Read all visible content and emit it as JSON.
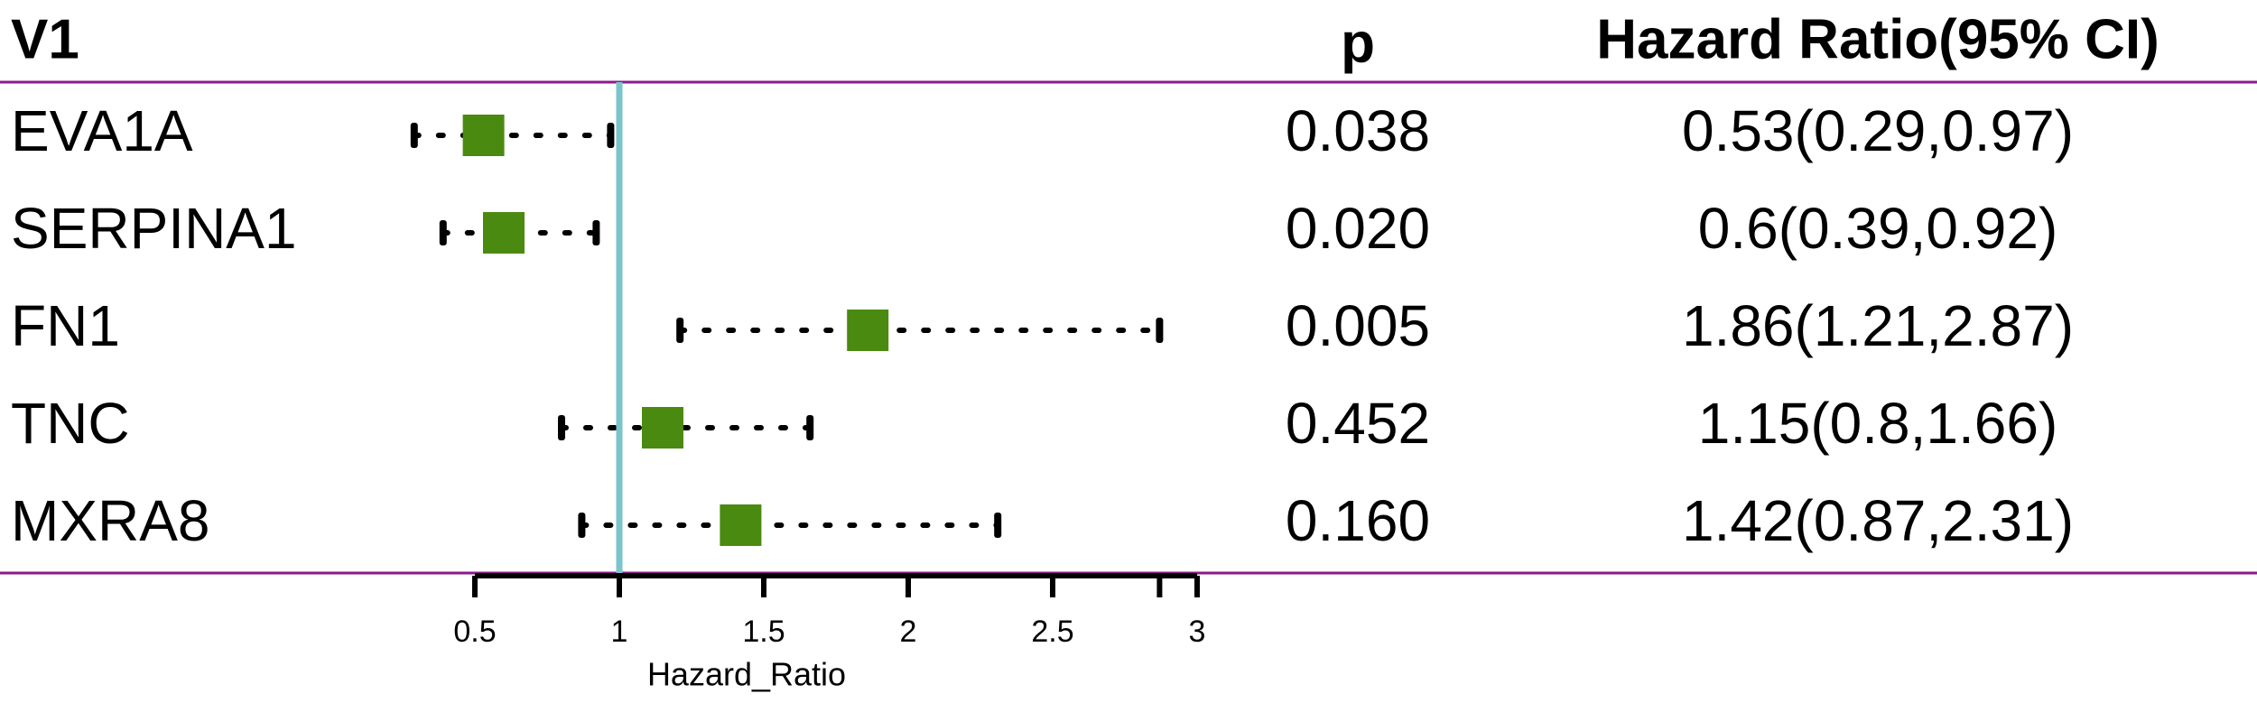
{
  "chart_data": {
    "type": "forest",
    "headers": [
      "V1",
      "p",
      "Hazard Ratio(95% CI)"
    ],
    "categories": [
      "EVA1A",
      "SERPINA1",
      "FN1",
      "TNC",
      "MXRA8"
    ],
    "values": [
      0.53,
      0.6,
      1.86,
      1.15,
      1.42
    ],
    "lower": [
      0.29,
      0.39,
      1.21,
      0.8,
      0.87
    ],
    "upper": [
      0.97,
      0.92,
      2.87,
      1.66,
      2.31
    ],
    "value_labels": [
      "0.53(0.29,0.97)",
      "0.6(0.39,0.92)",
      "1.86(1.21,2.87)",
      "1.15(0.8,1.66)",
      "1.42(0.87,2.31)"
    ],
    "p_values": [
      "0.038",
      "0.020",
      "0.005",
      "0.452",
      "0.160"
    ],
    "xlim": [
      0.5,
      3
    ],
    "xticks": [
      0.5,
      1,
      1.5,
      2,
      2.5,
      3
    ],
    "xlabel": "Hazard_Ratio",
    "reference_line": 1,
    "color": "#4a8a10",
    "reference_color": "#7ac4cc",
    "rule_color": "#8b1a8b"
  }
}
